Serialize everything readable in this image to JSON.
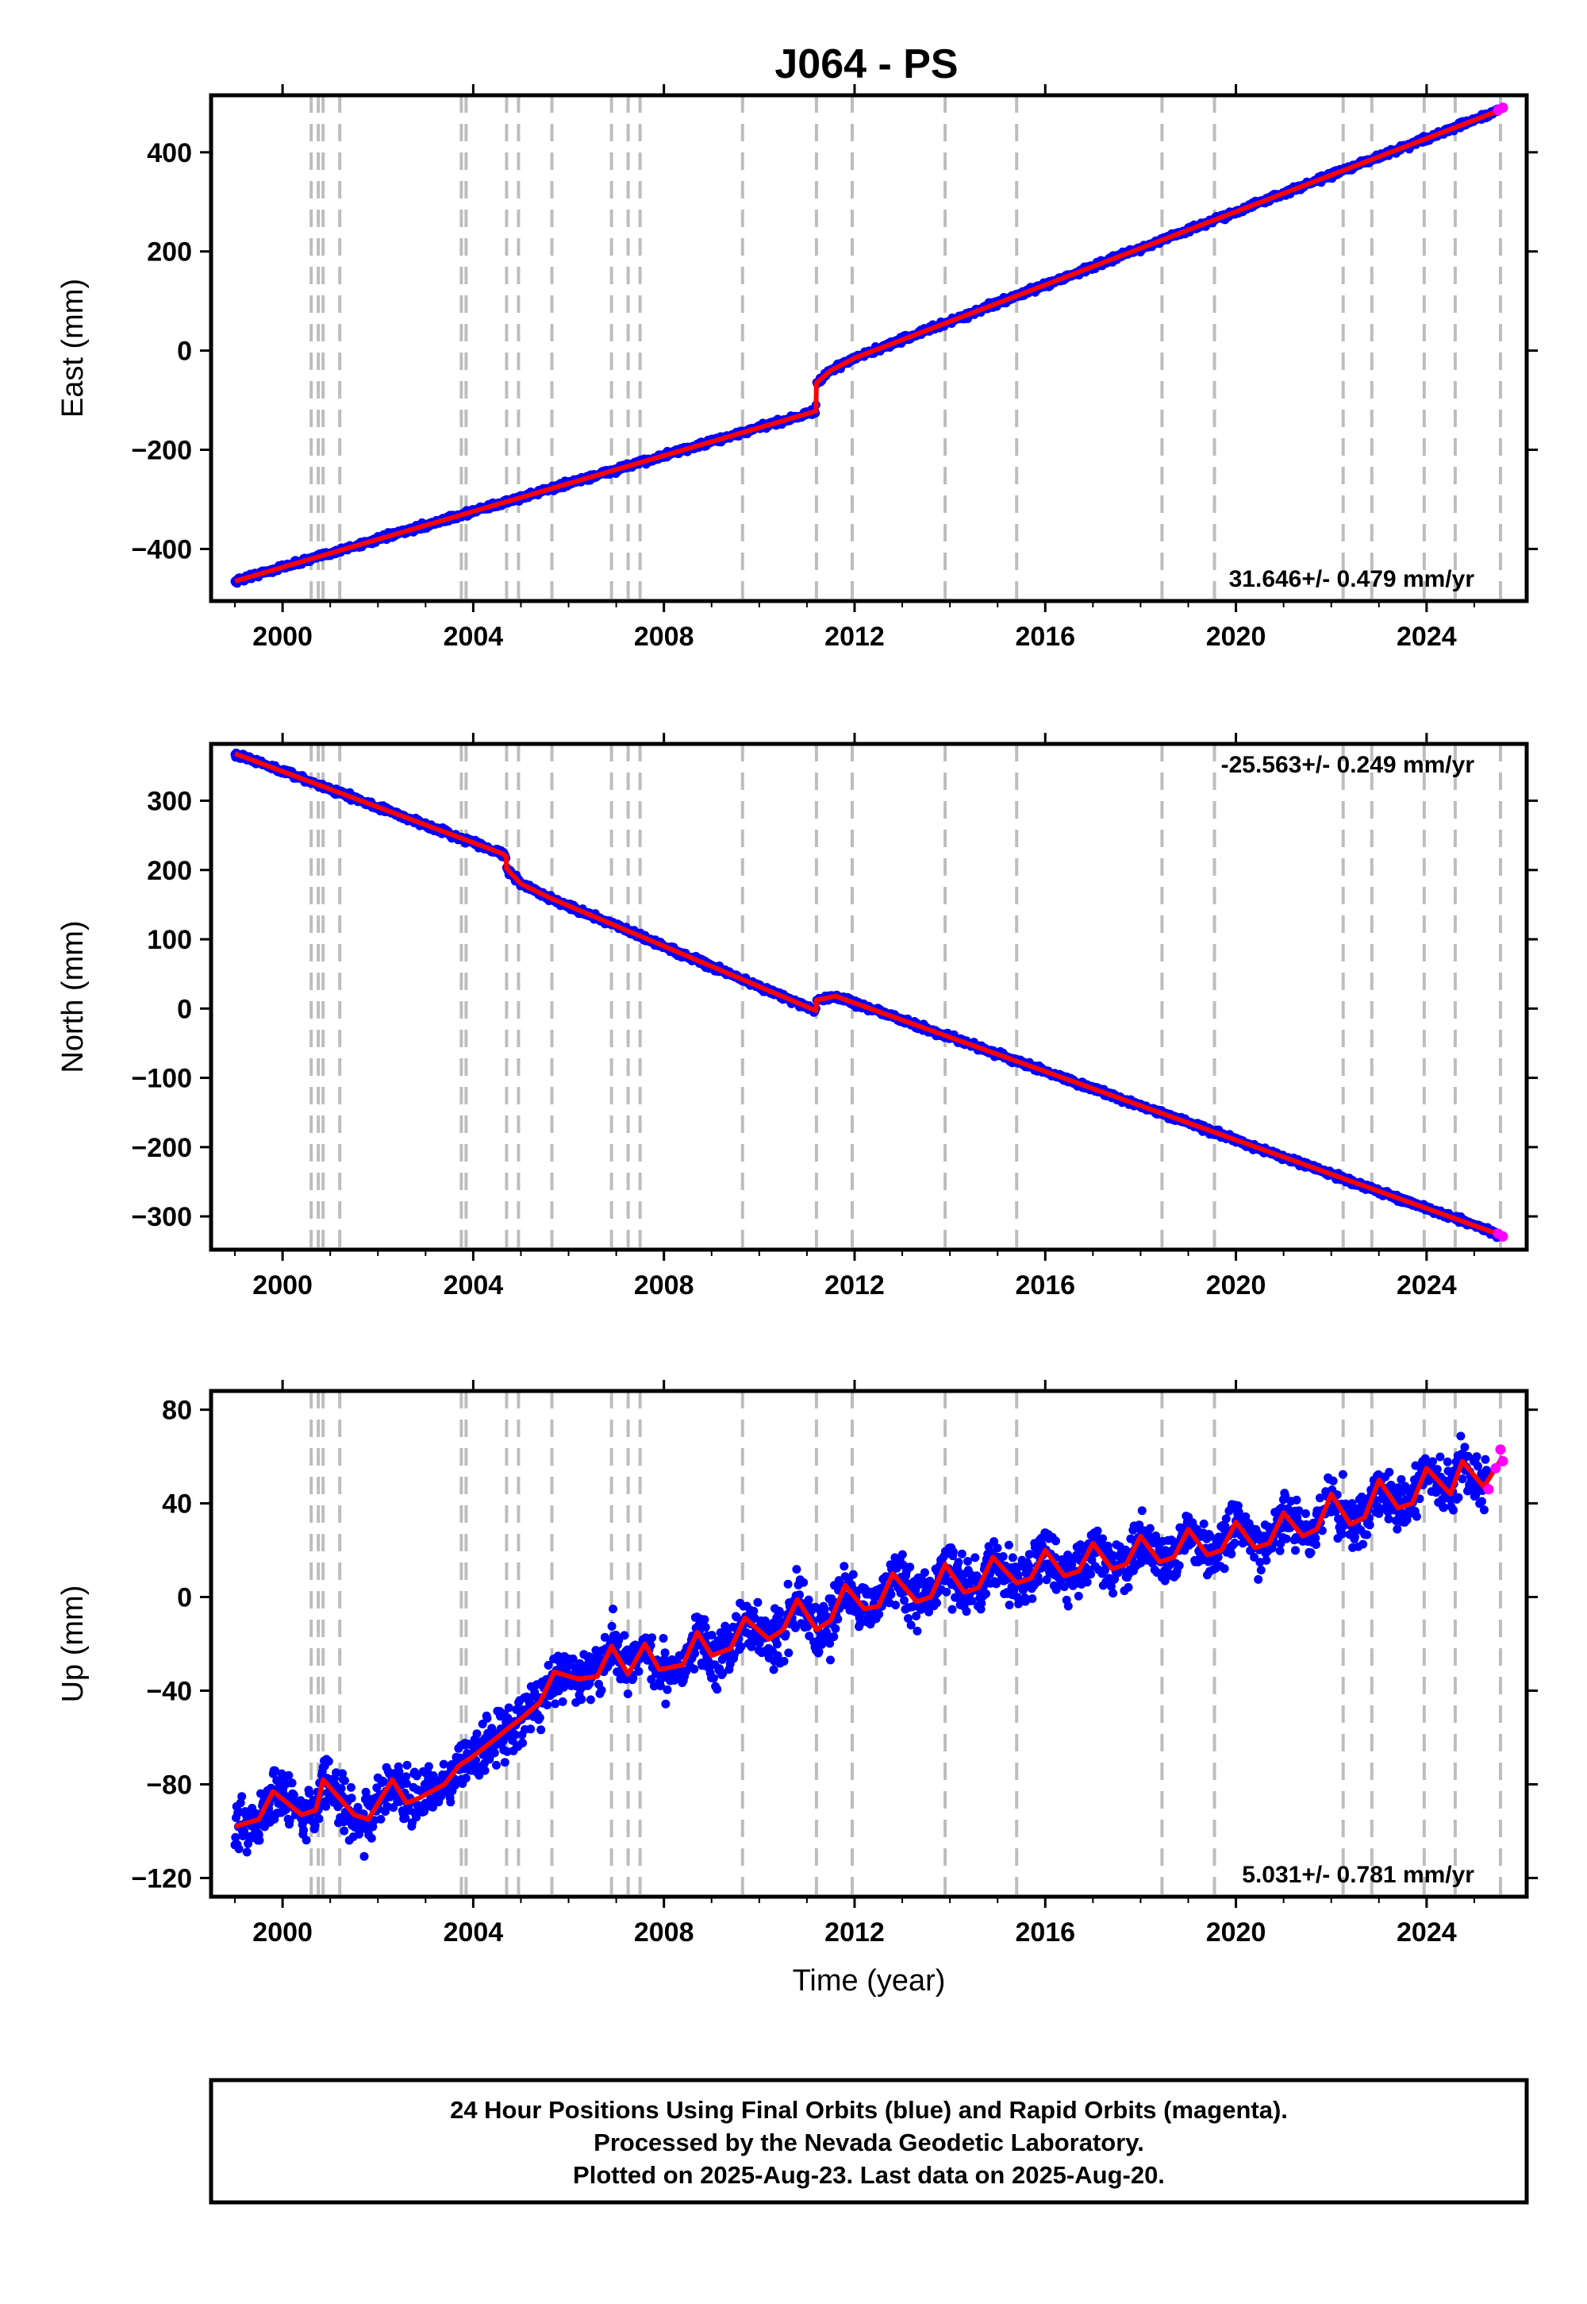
{
  "title": "J064 - PS",
  "footer": {
    "lines": [
      "24 Hour Positions Using Final Orbits (blue) and Rapid Orbits (magenta).",
      "Processed by the Nevada Geodetic Laboratory.",
      "Plotted on 2025-Aug-23. Last data on 2025-Aug-20."
    ]
  },
  "colors": {
    "final_orbits": "#0000ff",
    "rapid_orbits": "#ff00ff",
    "model": "#ff0000",
    "event_lines": "#bdbdbd",
    "frame": "#000000"
  },
  "chart_data": [
    {
      "type": "scatter",
      "panel": "east",
      "ylabel": "East (mm)",
      "xlabel": "",
      "xlim": [
        1998.5,
        2026.1
      ],
      "ylim": [
        -505,
        515
      ],
      "xticks": [
        2000,
        2004,
        2008,
        2012,
        2016,
        2020,
        2024
      ],
      "yticks": [
        -400,
        -200,
        0,
        200,
        400
      ],
      "ytick_labels": [
        "−400",
        "−200",
        "0",
        "200",
        "400"
      ],
      "rate_label": "31.646+/- 0.479 mm/yr",
      "rate_position": "bottom-right",
      "scatter_noise": 4,
      "events": [
        2000.6,
        2000.75,
        2000.85,
        2001.2,
        2003.75,
        2003.85,
        2004.7,
        2004.95,
        2005.65,
        2006.9,
        2007.25,
        2007.5,
        2009.65,
        2011.2,
        2011.95,
        2013.9,
        2015.4,
        2018.45,
        2019.55,
        2022.25,
        2022.85,
        2023.95,
        2024.6,
        2025.55
      ],
      "model": {
        "x": [
          1999.0,
          2011.19,
          2011.2,
          2011.5,
          2012.0,
          2025.6
        ],
        "y": [
          -465,
          -122,
          -65,
          -40,
          -15,
          487
        ]
      },
      "rapid": {
        "x": [
          2025.5,
          2025.6
        ],
        "y": [
          485,
          490
        ]
      },
      "grid": false,
      "legend": "none"
    },
    {
      "type": "scatter",
      "panel": "north",
      "ylabel": "North (mm)",
      "xlabel": "",
      "xlim": [
        1998.5,
        2026.1
      ],
      "ylim": [
        -348,
        382
      ],
      "xticks": [
        2000,
        2004,
        2008,
        2012,
        2016,
        2020,
        2024
      ],
      "yticks": [
        -300,
        -200,
        -100,
        0,
        100,
        200,
        300
      ],
      "ytick_labels": [
        "−300",
        "−200",
        "−100",
        "0",
        "100",
        "200",
        "300"
      ],
      "rate_label": "-25.563+/- 0.249 mm/yr",
      "rate_position": "top-right",
      "scatter_noise": 3,
      "events": [
        2000.6,
        2000.75,
        2000.85,
        2001.2,
        2003.75,
        2003.85,
        2004.7,
        2004.95,
        2005.65,
        2006.9,
        2007.25,
        2007.5,
        2009.65,
        2011.2,
        2011.95,
        2013.9,
        2015.4,
        2018.45,
        2019.55,
        2022.25,
        2022.85,
        2023.95,
        2024.6,
        2025.55
      ],
      "model": {
        "x": [
          1999.0,
          2004.6,
          2004.69,
          2004.7,
          2005.0,
          2005.6,
          2011.19,
          2011.2,
          2011.6,
          2012.0,
          2025.6
        ],
        "y": [
          368,
          224,
          220,
          202,
          180,
          160,
          -3,
          12,
          18,
          8,
          -328
        ]
      },
      "rapid": {
        "x": [
          2025.5,
          2025.6
        ],
        "y": [
          -325,
          -329
        ]
      },
      "grid": false,
      "legend": "none"
    },
    {
      "type": "scatter",
      "panel": "up",
      "ylabel": "Up (mm)",
      "xlabel": "Time (year)",
      "xlim": [
        1998.5,
        2026.1
      ],
      "ylim": [
        -128,
        88
      ],
      "xticks": [
        2000,
        2004,
        2008,
        2012,
        2016,
        2020,
        2024
      ],
      "yticks": [
        -120,
        -80,
        -40,
        0,
        40,
        80
      ],
      "ytick_labels": [
        "−120",
        "−80",
        "−40",
        "0",
        "40",
        "80"
      ],
      "rate_label": "5.031+/- 0.781 mm/yr",
      "rate_position": "bottom-right",
      "scatter_noise": 8,
      "events": [
        2000.6,
        2000.75,
        2000.85,
        2001.2,
        2003.75,
        2003.85,
        2004.7,
        2004.95,
        2005.65,
        2006.9,
        2007.25,
        2007.5,
        2009.65,
        2011.2,
        2011.95,
        2013.9,
        2015.4,
        2018.45,
        2019.55,
        2022.25,
        2022.85,
        2023.95,
        2024.6,
        2025.55
      ],
      "model": {
        "x": [
          1999.0,
          1999.5,
          1999.8,
          2000.4,
          2000.7,
          2000.85,
          2001.5,
          2001.8,
          2002.3,
          2002.6,
          2002.85,
          2003.4,
          2003.7,
          2004.0,
          2004.5,
          2004.8,
          2005.0,
          2005.4,
          2005.7,
          2006.2,
          2006.6,
          2006.9,
          2007.25,
          2007.6,
          2007.9,
          2008.4,
          2008.7,
          2009.0,
          2009.4,
          2009.7,
          2010.2,
          2010.5,
          2010.8,
          2011.2,
          2011.5,
          2011.8,
          2012.2,
          2012.5,
          2012.8,
          2013.3,
          2013.6,
          2013.9,
          2014.3,
          2014.6,
          2014.9,
          2015.4,
          2015.7,
          2016.0,
          2016.4,
          2016.7,
          2017.0,
          2017.4,
          2017.7,
          2018.0,
          2018.4,
          2018.7,
          2019.0,
          2019.4,
          2019.7,
          2020.0,
          2020.4,
          2020.7,
          2021.0,
          2021.4,
          2021.7,
          2022.0,
          2022.4,
          2022.7,
          2023.0,
          2023.4,
          2023.7,
          2024.0,
          2024.5,
          2024.75,
          2025.2,
          2025.6
        ],
        "y": [
          -98,
          -95,
          -83,
          -93,
          -91,
          -78,
          -93,
          -95,
          -78,
          -88,
          -86,
          -80,
          -72,
          -68,
          -60,
          -55,
          -52,
          -45,
          -32,
          -35,
          -34,
          -21,
          -33,
          -20,
          -31,
          -29,
          -15,
          -25,
          -22,
          -9,
          -18,
          -14,
          -1,
          -14,
          -10,
          5,
          -5,
          -4,
          10,
          -2,
          0,
          14,
          2,
          4,
          17,
          6,
          8,
          20,
          9,
          11,
          23,
          12,
          14,
          26,
          15,
          17,
          29,
          18,
          20,
          32,
          21,
          23,
          36,
          26,
          29,
          44,
          31,
          34,
          50,
          38,
          40,
          55,
          44,
          58,
          47,
          60
        ]
      },
      "rapid": {
        "x": [
          2025.3,
          2025.45,
          2025.55,
          2025.6
        ],
        "y": [
          46,
          55,
          63,
          58
        ]
      },
      "grid": false,
      "legend": "none"
    }
  ]
}
